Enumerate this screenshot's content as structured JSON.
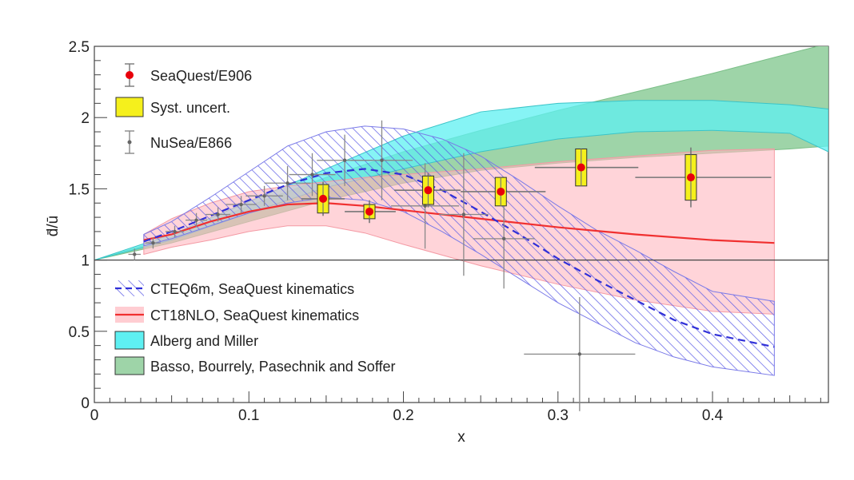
{
  "chart_data": {
    "type": "scatter",
    "xlabel": "x",
    "ylabel": "d̄/ū",
    "xlim": [
      0,
      0.475
    ],
    "ylim": [
      0,
      2.5
    ],
    "x_ticks": [
      "0",
      "0.1",
      "0.2",
      "0.3",
      "0.4"
    ],
    "y_ticks": [
      "0",
      "0.5",
      "1",
      "1.5",
      "2",
      "2.5"
    ],
    "reference_line": 1.0,
    "grid": false,
    "legend_top": [
      {
        "label": "SeaQuest/E906",
        "key": "seaquest"
      },
      {
        "label": "Syst. uncert.",
        "key": "syst"
      },
      {
        "label": "NuSea/E866",
        "key": "nusea"
      }
    ],
    "legend_bottom": [
      {
        "label": "CTEQ6m, SeaQuest kinematics",
        "key": "cteq"
      },
      {
        "label": "CT18NLO, SeaQuest kinematics",
        "key": "ct18"
      },
      {
        "label": "Alberg and Miller",
        "key": "alberg"
      },
      {
        "label": "Basso, Bourrely, Pasechnik and Soffer",
        "key": "basso"
      }
    ],
    "seaquest": {
      "name": "SeaQuest/E906",
      "points": [
        {
          "x": 0.148,
          "y": 1.43,
          "xerr_lo": 0.014,
          "xerr_hi": 0.014,
          "stat": 0.12,
          "syst": 0.1
        },
        {
          "x": 0.178,
          "y": 1.34,
          "xerr_lo": 0.016,
          "xerr_hi": 0.017,
          "stat": 0.08,
          "syst": 0.05
        },
        {
          "x": 0.216,
          "y": 1.49,
          "xerr_lo": 0.022,
          "xerr_hi": 0.021,
          "stat": 0.12,
          "syst": 0.1
        },
        {
          "x": 0.263,
          "y": 1.48,
          "xerr_lo": 0.026,
          "xerr_hi": 0.029,
          "stat": 0.09,
          "syst": 0.1
        },
        {
          "x": 0.315,
          "y": 1.65,
          "xerr_lo": 0.03,
          "xerr_hi": 0.037,
          "stat": 0.13,
          "syst": 0.13
        },
        {
          "x": 0.386,
          "y": 1.58,
          "xerr_lo": 0.036,
          "xerr_hi": 0.052,
          "stat": 0.21,
          "syst": 0.16
        }
      ]
    },
    "nusea": {
      "name": "NuSea/E866",
      "points": [
        {
          "x": 0.026,
          "y": 1.04,
          "xerr": 0.004,
          "err": 0.04
        },
        {
          "x": 0.038,
          "y": 1.12,
          "xerr": 0.005,
          "err": 0.04
        },
        {
          "x": 0.052,
          "y": 1.2,
          "xerr": 0.006,
          "err": 0.04
        },
        {
          "x": 0.066,
          "y": 1.28,
          "xerr": 0.007,
          "err": 0.05
        },
        {
          "x": 0.08,
          "y": 1.32,
          "xerr": 0.008,
          "err": 0.05
        },
        {
          "x": 0.095,
          "y": 1.39,
          "xerr": 0.01,
          "err": 0.06
        },
        {
          "x": 0.11,
          "y": 1.45,
          "xerr": 0.012,
          "err": 0.07
        },
        {
          "x": 0.125,
          "y": 1.54,
          "xerr": 0.015,
          "err": 0.12
        },
        {
          "x": 0.141,
          "y": 1.6,
          "xerr": 0.015,
          "err": 0.15
        },
        {
          "x": 0.162,
          "y": 1.7,
          "xerr": 0.018,
          "err": 0.18
        },
        {
          "x": 0.186,
          "y": 1.7,
          "xerr": 0.02,
          "err": 0.28
        },
        {
          "x": 0.214,
          "y": 1.38,
          "xerr": 0.022,
          "err": 0.3
        },
        {
          "x": 0.239,
          "y": 1.32,
          "xerr": 0.016,
          "err": 0.43
        },
        {
          "x": 0.265,
          "y": 1.15,
          "xerr": 0.02,
          "err": 0.35
        },
        {
          "x": 0.314,
          "y": 0.34,
          "xerr": 0.036,
          "err": 0.4
        }
      ]
    },
    "ct18": {
      "name": "CT18NLO, SeaQuest kinematics",
      "x": [
        0.032,
        0.05,
        0.075,
        0.1,
        0.125,
        0.15,
        0.175,
        0.2,
        0.25,
        0.3,
        0.35,
        0.4,
        0.44
      ],
      "y": [
        1.14,
        1.18,
        1.27,
        1.34,
        1.39,
        1.4,
        1.38,
        1.35,
        1.29,
        1.23,
        1.18,
        1.14,
        1.12
      ],
      "low": [
        1.04,
        1.09,
        1.14,
        1.2,
        1.24,
        1.24,
        1.19,
        1.11,
        0.96,
        0.83,
        0.72,
        0.64,
        0.62
      ],
      "high": [
        1.18,
        1.29,
        1.4,
        1.48,
        1.52,
        1.55,
        1.58,
        1.6,
        1.64,
        1.69,
        1.73,
        1.77,
        1.78
      ]
    },
    "cteq": {
      "name": "CTEQ6m, SeaQuest kinematics",
      "x": [
        0.032,
        0.05,
        0.075,
        0.1,
        0.125,
        0.15,
        0.175,
        0.2,
        0.225,
        0.25,
        0.275,
        0.3,
        0.325,
        0.35,
        0.375,
        0.4,
        0.44
      ],
      "y": [
        1.13,
        1.2,
        1.31,
        1.42,
        1.53,
        1.61,
        1.64,
        1.6,
        1.49,
        1.34,
        1.18,
        1.01,
        0.86,
        0.72,
        0.58,
        0.48,
        0.39
      ],
      "low": [
        1.1,
        1.15,
        1.24,
        1.33,
        1.4,
        1.44,
        1.42,
        1.34,
        1.2,
        1.04,
        0.87,
        0.7,
        0.56,
        0.42,
        0.32,
        0.25,
        0.19
      ],
      "high": [
        1.18,
        1.27,
        1.44,
        1.62,
        1.8,
        1.9,
        1.94,
        1.92,
        1.85,
        1.73,
        1.56,
        1.38,
        1.21,
        1.07,
        0.92,
        0.78,
        0.71
      ]
    },
    "alberg": {
      "name": "Alberg and Miller",
      "x": [
        0.0,
        0.05,
        0.1,
        0.15,
        0.2,
        0.25,
        0.3,
        0.35,
        0.4,
        0.45,
        0.475
      ],
      "low": [
        1.0,
        1.14,
        1.33,
        1.51,
        1.64,
        1.76,
        1.85,
        1.9,
        1.91,
        1.89,
        1.76
      ],
      "high": [
        1.0,
        1.18,
        1.41,
        1.64,
        1.87,
        2.04,
        2.1,
        2.12,
        2.12,
        2.09,
        2.06
      ]
    },
    "basso": {
      "name": "Basso, Bourrely, Pasechnik and Soffer",
      "x": [
        0.0,
        0.05,
        0.1,
        0.15,
        0.2,
        0.25,
        0.3,
        0.35,
        0.4,
        0.45,
        0.475
      ],
      "low": [
        1.0,
        1.12,
        1.27,
        1.42,
        1.54,
        1.63,
        1.68,
        1.72,
        1.75,
        1.78,
        1.8
      ],
      "high": [
        1.0,
        1.16,
        1.38,
        1.58,
        1.76,
        1.91,
        2.05,
        2.18,
        2.31,
        2.45,
        2.52
      ]
    },
    "colors": {
      "seaquest_marker": "#e8000b",
      "syst_fill": "#f5f01c",
      "nusea": "#888888",
      "ct18_line": "#f03030",
      "ct18_band": "#ffb8bf",
      "cteq_line": "#3030d8",
      "cteq_hatch": "#5a5ae6",
      "alberg_band": "#5ef0f2",
      "basso_band": "#9ed4a8",
      "overlap_band": "#38d8b0"
    }
  }
}
